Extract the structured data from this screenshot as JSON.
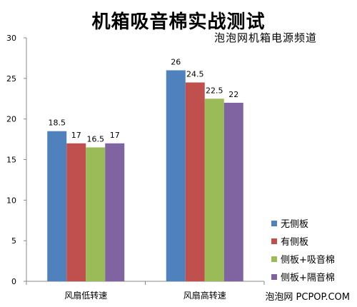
{
  "chart_data": {
    "type": "bar",
    "title": "机箱吸音棉实战测试",
    "subtitle": "泡泡网机箱电源频道",
    "categories": [
      "风扇低转速",
      "风扇高转速"
    ],
    "series": [
      {
        "name": "无侧板",
        "color": "#4F81BD",
        "values": [
          18.5,
          26
        ]
      },
      {
        "name": "有侧板",
        "color": "#C0504D",
        "values": [
          17,
          24.5
        ]
      },
      {
        "name": "侧板+吸音棉",
        "color": "#9BBB59",
        "values": [
          16.5,
          22.5
        ]
      },
      {
        "name": "侧板+隔音棉",
        "color": "#8064A2",
        "values": [
          17,
          22
        ]
      }
    ],
    "ylim": [
      0,
      30
    ],
    "yticks": [
      0,
      5,
      10,
      15,
      20,
      25,
      30
    ],
    "xlabel": "",
    "ylabel": "",
    "grid": false,
    "legend": "right"
  },
  "watermark": "泡泡网 PCPOP.COM"
}
